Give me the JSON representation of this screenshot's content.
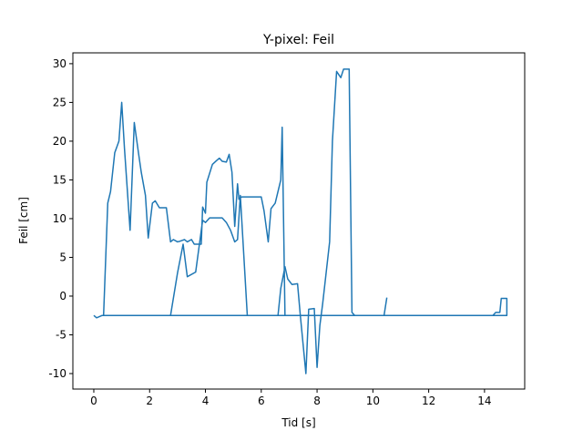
{
  "chart_data": {
    "type": "line",
    "title": "Y-pixel: Feil",
    "x_label": "Tid [s]",
    "y_label": "Feil [cm]",
    "x": [
      0,
      0.1,
      0.3,
      2.75,
      3.0,
      3.2,
      3.35,
      3.65,
      3.9,
      4.0,
      4.15,
      4.6,
      4.75,
      4.9,
      5.05,
      5.15,
      5.25,
      5.5,
      6.6,
      6.7,
      6.85,
      6.95,
      7.1,
      7.3,
      7.4,
      7.6,
      7.7,
      7.9,
      8.0,
      8.1,
      8.2,
      8.45,
      8.55,
      8.7,
      8.85,
      8.95,
      9.15,
      9.25,
      9.35,
      14.3,
      14.4,
      14.55,
      14.6,
      14.8,
      14.8,
      0.35,
      0.5,
      0.6,
      0.75,
      0.9,
      1.0,
      1.1,
      1.3,
      1.45,
      1.6,
      1.7,
      1.85,
      1.95,
      2.1,
      2.2,
      2.35,
      2.6,
      2.75,
      2.85,
      3.0,
      3.1,
      3.25,
      3.35,
      3.5,
      3.6,
      3.85,
      3.9,
      4.0,
      4.05,
      4.25,
      4.4,
      4.5,
      4.6,
      4.75,
      4.85,
      4.95,
      5.05,
      5.15,
      5.2,
      5.3,
      6.0,
      6.1,
      6.25,
      6.35,
      6.5,
      6.7,
      6.75,
      6.85,
      10.4,
      10.5
    ],
    "series": [
      {
        "name": "Feil",
        "color": "#1f77b4",
        "values": [
          -2.5,
          -2.8,
          -2.5,
          -2.5,
          3,
          6.7,
          2.5,
          3.1,
          9.8,
          9.5,
          10.1,
          10.1,
          9.5,
          8.5,
          7,
          7.3,
          13,
          -2.5,
          -2.5,
          1,
          3.8,
          2.2,
          1.5,
          1.6,
          -2.5,
          -10,
          -1.7,
          -1.6,
          -9.2,
          -3.8,
          -1,
          7,
          20,
          29,
          28.2,
          29.3,
          29.3,
          -2.1,
          -2.5,
          -2.5,
          -2.1,
          -2.1,
          -0.3,
          -0.3,
          -2.5,
          -2.5,
          12,
          13.5,
          18.5,
          20,
          25,
          19,
          8.5,
          22.4,
          18.5,
          16,
          13,
          7.5,
          12,
          12.3,
          11.4,
          11.4,
          7,
          7.3,
          7,
          7.1,
          7.3,
          7,
          7.3,
          6.7,
          6.7,
          11.5,
          10.7,
          14.7,
          17,
          17.5,
          17.8,
          17.4,
          17.3,
          18.3,
          16,
          9,
          14.5,
          12.5,
          12.8,
          12.8,
          11,
          7,
          11.3,
          12,
          15,
          21.8,
          -2.5,
          -2.5,
          -0.2
        ]
      }
    ],
    "xlim": [
      -0.75,
      15.44
    ],
    "ylim": [
      -12,
      31.4
    ],
    "xticks": [
      0,
      2,
      4,
      6,
      8,
      10,
      12,
      14
    ],
    "yticks": [
      -10,
      -5,
      0,
      5,
      10,
      15,
      20,
      25,
      30
    ]
  }
}
